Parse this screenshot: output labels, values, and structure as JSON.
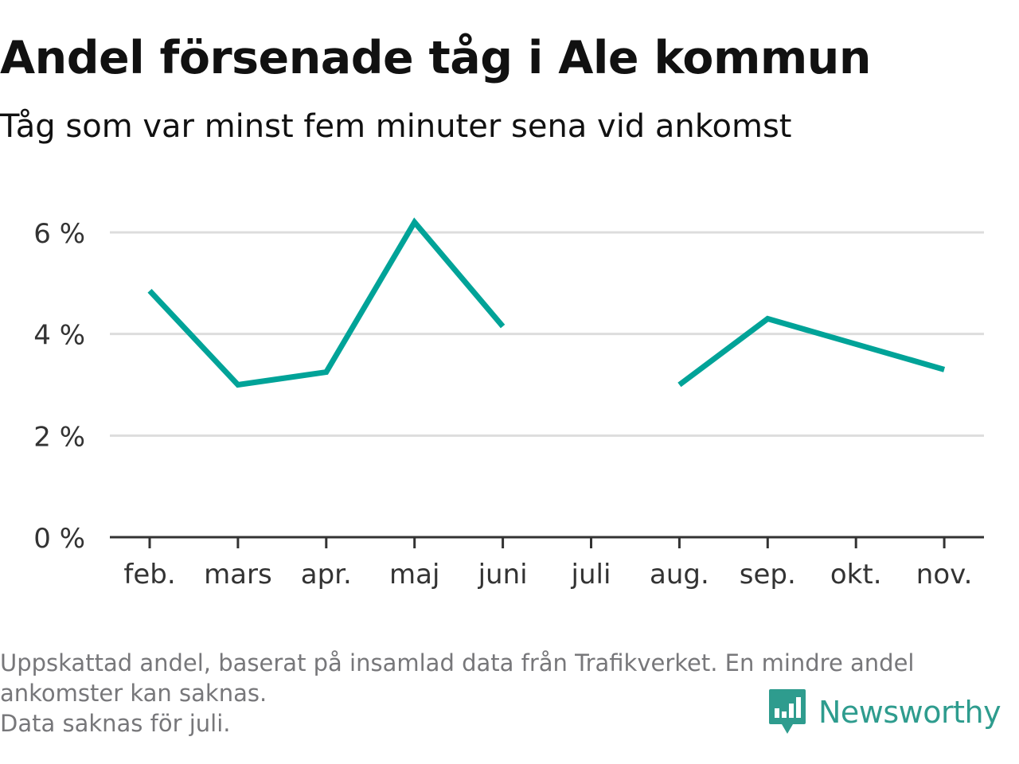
{
  "title": "Andel försenade tåg i Ale kommun",
  "subtitle": "Tåg som var minst fem minuter sena vid ankomst",
  "footnote": {
    "line1": "Uppskattad andel, baserat på insamlad data från Trafikverket. En mindre andel",
    "line2": "ankomster kan saknas.",
    "line3": "Data saknas för juli."
  },
  "logo": {
    "text": "Newsworthy",
    "icon": "bar-chart-speech-bubble-icon",
    "color": "#2e9c8e"
  },
  "chart_data": {
    "type": "line",
    "categories": [
      "feb.",
      "mars",
      "apr.",
      "maj",
      "juni",
      "juli",
      "aug.",
      "sep.",
      "okt.",
      "nov."
    ],
    "series": [
      {
        "values": [
          4.85,
          3.0,
          3.25,
          6.2,
          4.15,
          null,
          3.0,
          4.3,
          3.8,
          3.3
        ],
        "color": "#00a398"
      }
    ],
    "ylim": [
      0,
      6
    ],
    "yticks": [
      0,
      2,
      4,
      6
    ],
    "ytick_labels": [
      "0 %",
      "2 %",
      "4 %",
      "6 %"
    ],
    "xlabel": "",
    "ylabel": "",
    "grid": true,
    "colors": {
      "grid": "#dddddd",
      "axis": "#333333",
      "tick_text": "#333333"
    }
  }
}
